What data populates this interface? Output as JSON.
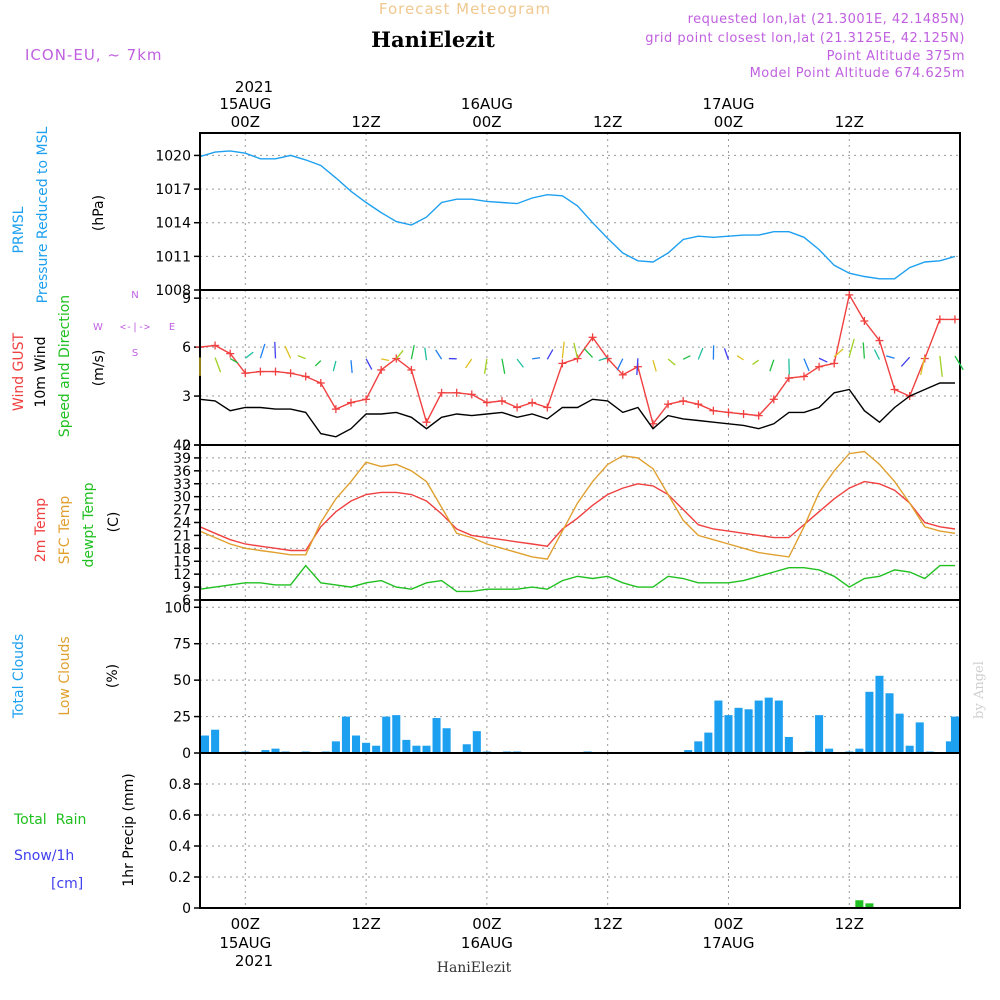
{
  "header": {
    "product": "Forecast Meteogram",
    "location": "HaniElezit",
    "model": "ICON-EU, ~ 7km",
    "requested": "requested lon,lat (21.3001E, 42.1485N)",
    "gridpoint": "grid point closest lon,lat (21.3125E, 42.125N)",
    "point_altitude": "Point Altitude 375m",
    "model_altitude": "Model Point Altitude 674.625m",
    "credit": "by Angel",
    "footer_location": "HaniElezit"
  },
  "time_axis": {
    "year": "2021",
    "top_labels": [
      {
        "hour": 0,
        "l1": "15AUG",
        "l2": "00Z"
      },
      {
        "hour": 12,
        "l1": "",
        "l2": "12Z"
      },
      {
        "hour": 24,
        "l1": "16AUG",
        "l2": "00Z"
      },
      {
        "hour": 36,
        "l1": "",
        "l2": "12Z"
      },
      {
        "hour": 48,
        "l1": "17AUG",
        "l2": "00Z"
      },
      {
        "hour": 60,
        "l1": "",
        "l2": "12Z"
      }
    ],
    "bottom_labels": [
      {
        "hour": 0,
        "l1": "00Z",
        "l2": "15AUG"
      },
      {
        "hour": 12,
        "l1": "12Z",
        "l2": ""
      },
      {
        "hour": 24,
        "l1": "00Z",
        "l2": "16AUG"
      },
      {
        "hour": 36,
        "l1": "12Z",
        "l2": ""
      },
      {
        "hour": 48,
        "l1": "00Z",
        "l2": "17AUG"
      },
      {
        "hour": 60,
        "l1": "12Z",
        "l2": ""
      }
    ],
    "start_hour": -4.5,
    "end_hour": 71
  },
  "colors": {
    "pressure": "#1ea0f0",
    "gust": "#f04040",
    "wind": "#000000",
    "temp2m": "#f04040",
    "sfc": "#e0a030",
    "dewpt": "#20c020",
    "clouds_total": "#1ea0f0",
    "clouds_low": "#e0a030",
    "rain": "#20c020",
    "snow": "#4040f0",
    "panel_label_purple": "#c060e0"
  },
  "chart_data": [
    {
      "type": "line",
      "panel": "pressure",
      "label1": "PRMSL",
      "label2": "Pressure Reduced to MSL",
      "unit": "(hPa)",
      "ylim": [
        1008,
        1022
      ],
      "yticks": [
        "1008",
        "1011",
        "1014",
        "1017",
        "1020"
      ],
      "series": [
        {
          "x": [
            -4.5,
            -3,
            -1.5,
            0,
            1.5,
            3,
            4.5,
            6,
            7.5,
            9,
            10.5,
            12,
            13.5,
            15,
            16.5,
            18,
            19.5,
            21,
            22.5,
            24,
            25.5,
            27,
            28.5,
            30,
            31.5,
            33,
            34.5,
            36,
            37.5,
            39,
            40.5,
            42,
            43.5,
            45,
            46.5,
            48,
            49.5,
            51,
            52.5,
            54,
            55.5,
            57,
            58.5,
            60,
            61.5,
            63,
            64.5,
            66,
            67.5,
            69,
            70.5
          ],
          "y": [
            1019.9,
            1020.3,
            1020.4,
            1020.2,
            1019.7,
            1019.7,
            1020.0,
            1019.6,
            1019.1,
            1018.0,
            1016.8,
            1015.8,
            1014.9,
            1014.1,
            1013.8,
            1014.5,
            1015.8,
            1016.1,
            1016.1,
            1015.9,
            1015.8,
            1015.7,
            1016.2,
            1016.5,
            1016.4,
            1015.5,
            1014.0,
            1012.6,
            1011.3,
            1010.6,
            1010.5,
            1011.3,
            1012.5,
            1012.8,
            1012.7,
            1012.8,
            1012.9,
            1012.9,
            1013.2,
            1013.2,
            1012.7,
            1011.6,
            1010.2,
            1009.5,
            1009.2,
            1009.0,
            1009.0,
            1010.0,
            1010.5,
            1010.6,
            1011.0
          ]
        }
      ]
    },
    {
      "type": "line",
      "panel": "wind",
      "label_gust": "Wind GUST",
      "label_wind": "10m Wind",
      "label_dir": "Speed and Direction",
      "unit": "(m/s)",
      "compass": {
        "n": "N",
        "s": "S",
        "w": "W",
        "e": "E",
        "arrow": "<-|->"
      },
      "ylim": [
        0,
        9.5
      ],
      "yticks": [
        "0",
        "3",
        "6",
        "9"
      ],
      "series": [
        {
          "name": "Wind GUST",
          "x": [
            -4.5,
            -3,
            -1.5,
            0,
            1.5,
            3,
            4.5,
            6,
            7.5,
            9,
            10.5,
            12,
            13.5,
            15,
            16.5,
            18,
            19.5,
            21,
            22.5,
            24,
            25.5,
            27,
            28.5,
            30,
            31.5,
            33,
            34.5,
            36,
            37.5,
            39,
            40.5,
            42,
            43.5,
            45,
            46.5,
            48,
            49.5,
            51,
            52.5,
            54,
            55.5,
            57,
            58.5,
            60,
            61.5,
            63,
            64.5,
            66,
            67.5,
            69,
            70.5
          ],
          "y": [
            6.0,
            6.1,
            5.6,
            4.4,
            4.5,
            4.5,
            4.4,
            4.2,
            3.8,
            2.2,
            2.6,
            2.8,
            4.6,
            5.3,
            4.6,
            1.4,
            3.2,
            3.2,
            3.1,
            2.6,
            2.7,
            2.3,
            2.6,
            2.3,
            5.0,
            5.3,
            6.6,
            5.3,
            4.3,
            4.8,
            1.3,
            2.5,
            2.7,
            2.5,
            2.1,
            2.0,
            1.9,
            1.8,
            2.8,
            4.1,
            4.2,
            4.8,
            5.0,
            9.2,
            7.6,
            6.4,
            3.4,
            3.0,
            5.3,
            7.7,
            7.7
          ]
        },
        {
          "name": "10m Wind",
          "x": [
            -4.5,
            -3,
            -1.5,
            0,
            1.5,
            3,
            4.5,
            6,
            7.5,
            9,
            10.5,
            12,
            13.5,
            15,
            16.5,
            18,
            19.5,
            21,
            22.5,
            24,
            25.5,
            27,
            28.5,
            30,
            31.5,
            33,
            34.5,
            36,
            37.5,
            39,
            40.5,
            42,
            43.5,
            45,
            46.5,
            48,
            49.5,
            51,
            52.5,
            54,
            55.5,
            57,
            58.5,
            60,
            61.5,
            63,
            64.5,
            66,
            67.5,
            69,
            70.5
          ],
          "y": [
            2.8,
            2.7,
            2.1,
            2.3,
            2.3,
            2.2,
            2.2,
            2.0,
            0.7,
            0.5,
            1.0,
            1.9,
            1.9,
            2.0,
            1.7,
            1.0,
            1.7,
            1.9,
            1.8,
            1.9,
            2.0,
            1.7,
            1.9,
            1.6,
            2.3,
            2.3,
            2.8,
            2.7,
            2.0,
            2.3,
            1.0,
            1.8,
            1.6,
            1.5,
            1.4,
            1.3,
            1.2,
            1.0,
            1.3,
            2.0,
            2.0,
            2.3,
            3.2,
            3.4,
            2.1,
            1.4,
            2.3,
            3.0,
            3.4,
            3.8,
            3.8
          ]
        }
      ]
    },
    {
      "type": "line",
      "panel": "temperature",
      "label_t2m": "2m Temp",
      "label_sfc": "SFC Temp",
      "label_dew": "dewpt Temp",
      "unit": "(C)",
      "ylim": [
        6,
        42
      ],
      "yticks": [
        "6",
        "9",
        "12",
        "15",
        "18",
        "21",
        "24",
        "27",
        "30",
        "33",
        "36",
        "39",
        "42"
      ],
      "series": [
        {
          "name": "2m Temp",
          "x": [
            -4.5,
            -3,
            -1.5,
            0,
            1.5,
            3,
            4.5,
            6,
            7.5,
            9,
            10.5,
            12,
            13.5,
            15,
            16.5,
            18,
            19.5,
            21,
            22.5,
            24,
            25.5,
            27,
            28.5,
            30,
            31.5,
            33,
            34.5,
            36,
            37.5,
            39,
            40.5,
            42,
            43.5,
            45,
            46.5,
            48,
            49.5,
            51,
            52.5,
            54,
            55.5,
            57,
            58.5,
            60,
            61.5,
            63,
            64.5,
            66,
            67.5,
            69,
            70.5
          ],
          "y": [
            23.0,
            21.5,
            20.0,
            19.0,
            18.5,
            18.0,
            17.5,
            17.5,
            23.0,
            26.5,
            29.0,
            30.5,
            31.0,
            31.0,
            30.5,
            29.0,
            26.0,
            22.5,
            21.0,
            20.5,
            20.0,
            19.5,
            19.0,
            18.5,
            22.5,
            25.0,
            28.0,
            30.5,
            32.0,
            33.0,
            32.5,
            30.5,
            27.0,
            23.5,
            22.5,
            22.0,
            21.5,
            21.0,
            20.5,
            20.5,
            23.5,
            26.5,
            29.5,
            32.0,
            33.5,
            33.0,
            31.5,
            28.5,
            24.0,
            23.0,
            22.5
          ]
        },
        {
          "name": "SFC Temp",
          "x": [
            -4.5,
            -3,
            -1.5,
            0,
            1.5,
            3,
            4.5,
            6,
            7.5,
            9,
            10.5,
            12,
            13.5,
            15,
            16.5,
            18,
            19.5,
            21,
            22.5,
            24,
            25.5,
            27,
            28.5,
            30,
            31.5,
            33,
            34.5,
            36,
            37.5,
            39,
            40.5,
            42,
            43.5,
            45,
            46.5,
            48,
            49.5,
            51,
            52.5,
            54,
            55.5,
            57,
            58.5,
            60,
            61.5,
            63,
            64.5,
            66,
            67.5,
            69,
            70.5
          ],
          "y": [
            22.0,
            20.5,
            19.0,
            18.0,
            17.5,
            17.0,
            16.5,
            16.5,
            24.0,
            29.5,
            33.5,
            38.0,
            37.0,
            37.5,
            36.0,
            33.5,
            27.5,
            21.5,
            20.5,
            19.0,
            18.0,
            17.0,
            16.0,
            15.5,
            22.0,
            28.5,
            33.5,
            37.5,
            39.5,
            39.0,
            36.5,
            30.5,
            24.5,
            21.0,
            20.0,
            19.0,
            18.0,
            17.0,
            16.5,
            16.0,
            23.0,
            31.0,
            36.0,
            40.0,
            40.5,
            37.5,
            33.5,
            28.5,
            23.0,
            22.0,
            21.5
          ]
        },
        {
          "name": "dewpt Temp",
          "x": [
            -4.5,
            -3,
            -1.5,
            0,
            1.5,
            3,
            4.5,
            6,
            7.5,
            9,
            10.5,
            12,
            13.5,
            15,
            16.5,
            18,
            19.5,
            21,
            22.5,
            24,
            25.5,
            27,
            28.5,
            30,
            31.5,
            33,
            34.5,
            36,
            37.5,
            39,
            40.5,
            42,
            43.5,
            45,
            46.5,
            48,
            49.5,
            51,
            52.5,
            54,
            55.5,
            57,
            58.5,
            60,
            61.5,
            63,
            64.5,
            66,
            67.5,
            69,
            70.5
          ],
          "y": [
            8.5,
            9.0,
            9.5,
            10.0,
            10.0,
            9.5,
            9.5,
            14.0,
            10.0,
            9.5,
            9.0,
            10.0,
            10.5,
            9.0,
            8.5,
            10.0,
            10.5,
            8.0,
            8.0,
            8.5,
            8.5,
            8.5,
            9.0,
            8.5,
            10.5,
            11.5,
            11.0,
            11.5,
            10.0,
            9.0,
            9.0,
            11.5,
            11.0,
            10.0,
            10.0,
            10.0,
            10.5,
            11.5,
            12.5,
            13.5,
            13.5,
            13.0,
            11.5,
            9.0,
            11.0,
            11.5,
            13.0,
            12.5,
            11.0,
            14.0,
            14.0
          ]
        }
      ]
    },
    {
      "type": "bar",
      "panel": "clouds",
      "label_total": "Total Clouds",
      "label_low": "Low Clouds",
      "unit": "(%)",
      "ylim": [
        0,
        105
      ],
      "yticks": [
        "0",
        "25",
        "50",
        "75",
        "100"
      ],
      "series": [
        {
          "name": "Total Clouds",
          "x": [
            -4,
            -3,
            0,
            2,
            3,
            4,
            6,
            8,
            9,
            10,
            11,
            12,
            13,
            14,
            15,
            16,
            17,
            18,
            19,
            20,
            22,
            23,
            24,
            26,
            27,
            34,
            44,
            45,
            46,
            47,
            48,
            49,
            50,
            51,
            52,
            53,
            54,
            56,
            57,
            58,
            60,
            61,
            62,
            63,
            64,
            65,
            66,
            67,
            68,
            70,
            70.5
          ],
          "y": [
            12,
            16,
            1,
            2,
            3,
            1,
            1,
            1,
            8,
            25,
            12,
            7,
            5,
            25,
            26,
            9,
            5,
            5,
            24,
            17,
            6,
            15,
            1,
            1,
            1,
            1,
            2,
            8,
            14,
            36,
            26,
            31,
            30,
            36,
            38,
            36,
            11,
            1,
            26,
            3,
            1,
            3,
            42,
            53,
            41,
            27,
            5,
            21,
            1,
            8,
            25
          ]
        }
      ]
    },
    {
      "type": "bar",
      "panel": "precip",
      "label_rain": "Total  Rain",
      "label_snow": "Snow/1h",
      "label_cm": "[cm]",
      "unit": "1hr Precip (mm)",
      "ylim": [
        0,
        1.0
      ],
      "yticks": [
        "0",
        "0.2",
        "0.4",
        "0.6",
        "0.8"
      ],
      "series": [
        {
          "name": "Total Rain",
          "x": [
            61,
            62
          ],
          "y": [
            0.05,
            0.03
          ]
        }
      ]
    }
  ]
}
